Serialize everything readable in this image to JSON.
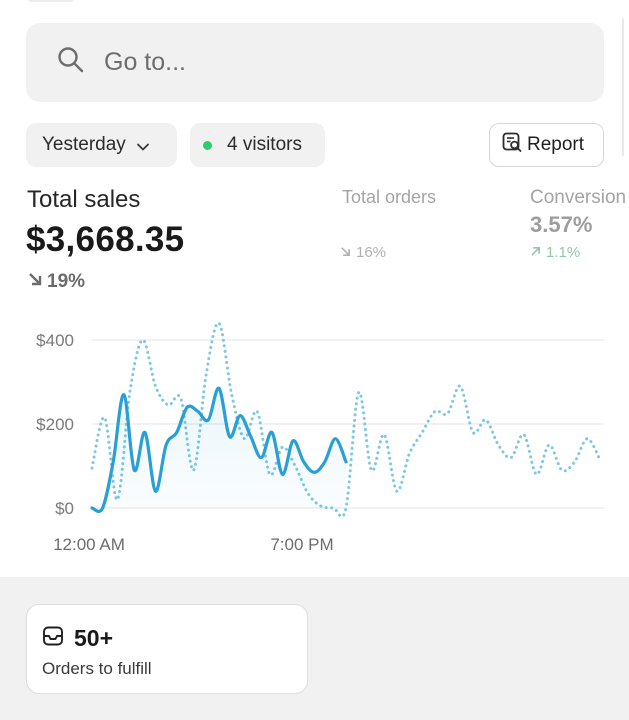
{
  "search": {
    "placeholder": "Go to...",
    "icon": "search-icon"
  },
  "filters": {
    "date_label": "Yesterday",
    "visitors_label": "4 visitors",
    "visitors_dot_color": "#2ecc71",
    "report_label": "Report"
  },
  "metrics": {
    "total_sales": {
      "label": "Total sales",
      "value": "$3,668.35",
      "change": "19%",
      "direction": "down"
    },
    "total_orders": {
      "label": "Total orders",
      "change": "16%",
      "direction": "down"
    },
    "conversion": {
      "label": "Conversion",
      "value": "3.57%",
      "change": "1.1%",
      "direction": "up"
    }
  },
  "chart_data": {
    "type": "line",
    "y_tick_labels": [
      "$400",
      "$200",
      "$0"
    ],
    "x_tick_labels": [
      "12:00 AM",
      "7:00 PM"
    ],
    "ylim": [
      0,
      400
    ],
    "grid": true,
    "series": [
      {
        "style": "solid",
        "color": "#2a9fd6",
        "values": [
          0,
          0,
          110,
          270,
          90,
          180,
          40,
          150,
          180,
          240,
          230,
          210,
          285,
          170,
          220,
          170,
          120,
          180,
          80,
          160,
          110,
          85,
          110,
          165,
          110
        ]
      },
      {
        "style": "dotted",
        "color": "#7cc8e3",
        "values": [
          95,
          215,
          20,
          280,
          400,
          290,
          245,
          260,
          90,
          320,
          440,
          270,
          165,
          230,
          80,
          145,
          100,
          35,
          5,
          0,
          0,
          275,
          90,
          175,
          40,
          130,
          180,
          230,
          225,
          290,
          180,
          210,
          150,
          120,
          175,
          80,
          150,
          90,
          110,
          165,
          115
        ]
      }
    ]
  },
  "fulfill_card": {
    "count": "50+",
    "label": "Orders to fulfill"
  }
}
